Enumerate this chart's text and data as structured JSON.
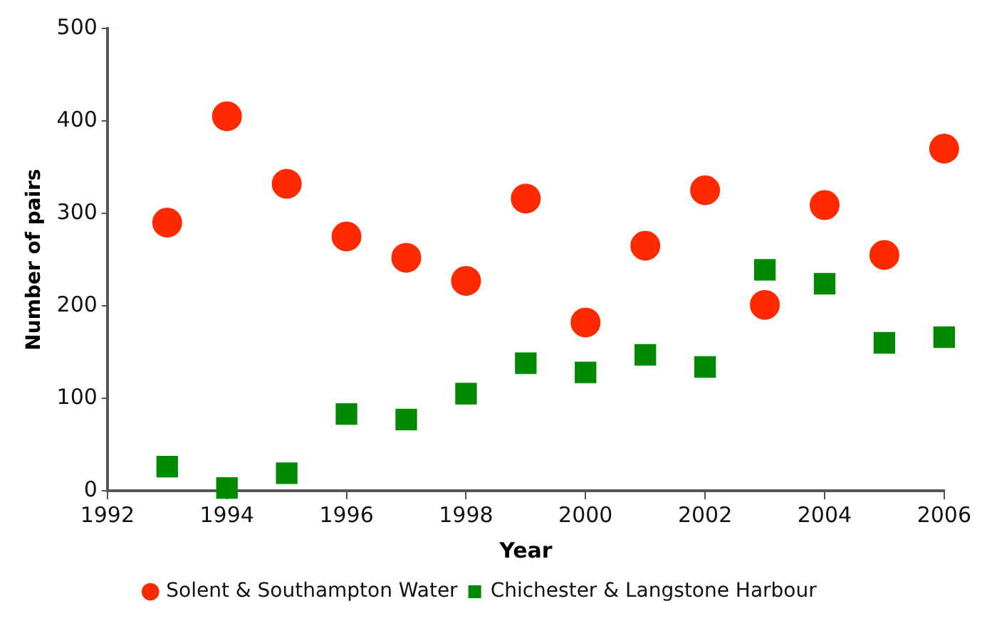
{
  "chart_data": {
    "type": "scatter",
    "xlabel": "Year",
    "ylabel": "Number of pairs",
    "x": [
      1993,
      1994,
      1995,
      1996,
      1997,
      1998,
      1999,
      2000,
      2001,
      2002,
      2003,
      2004,
      2005,
      2006
    ],
    "series": [
      {
        "name": "Solent & Southampton Water",
        "color": "#ff2a00",
        "marker": "circle",
        "values": [
          290,
          405,
          332,
          275,
          252,
          227,
          316,
          182,
          265,
          325,
          201,
          309,
          255,
          370
        ]
      },
      {
        "name": "Chichester & Langstone Harbour",
        "color": "#008a00",
        "marker": "square",
        "values": [
          26,
          3,
          19,
          83,
          77,
          105,
          138,
          128,
          147,
          134,
          239,
          224,
          160,
          166
        ]
      }
    ],
    "xlim": [
      1992,
      2006
    ],
    "xticks": [
      1992,
      1994,
      1996,
      1998,
      2000,
      2002,
      2004,
      2006
    ],
    "ylim": [
      0,
      500
    ],
    "yticks": [
      0,
      100,
      200,
      300,
      400,
      500
    ],
    "grid": false,
    "legend": "bottom"
  }
}
